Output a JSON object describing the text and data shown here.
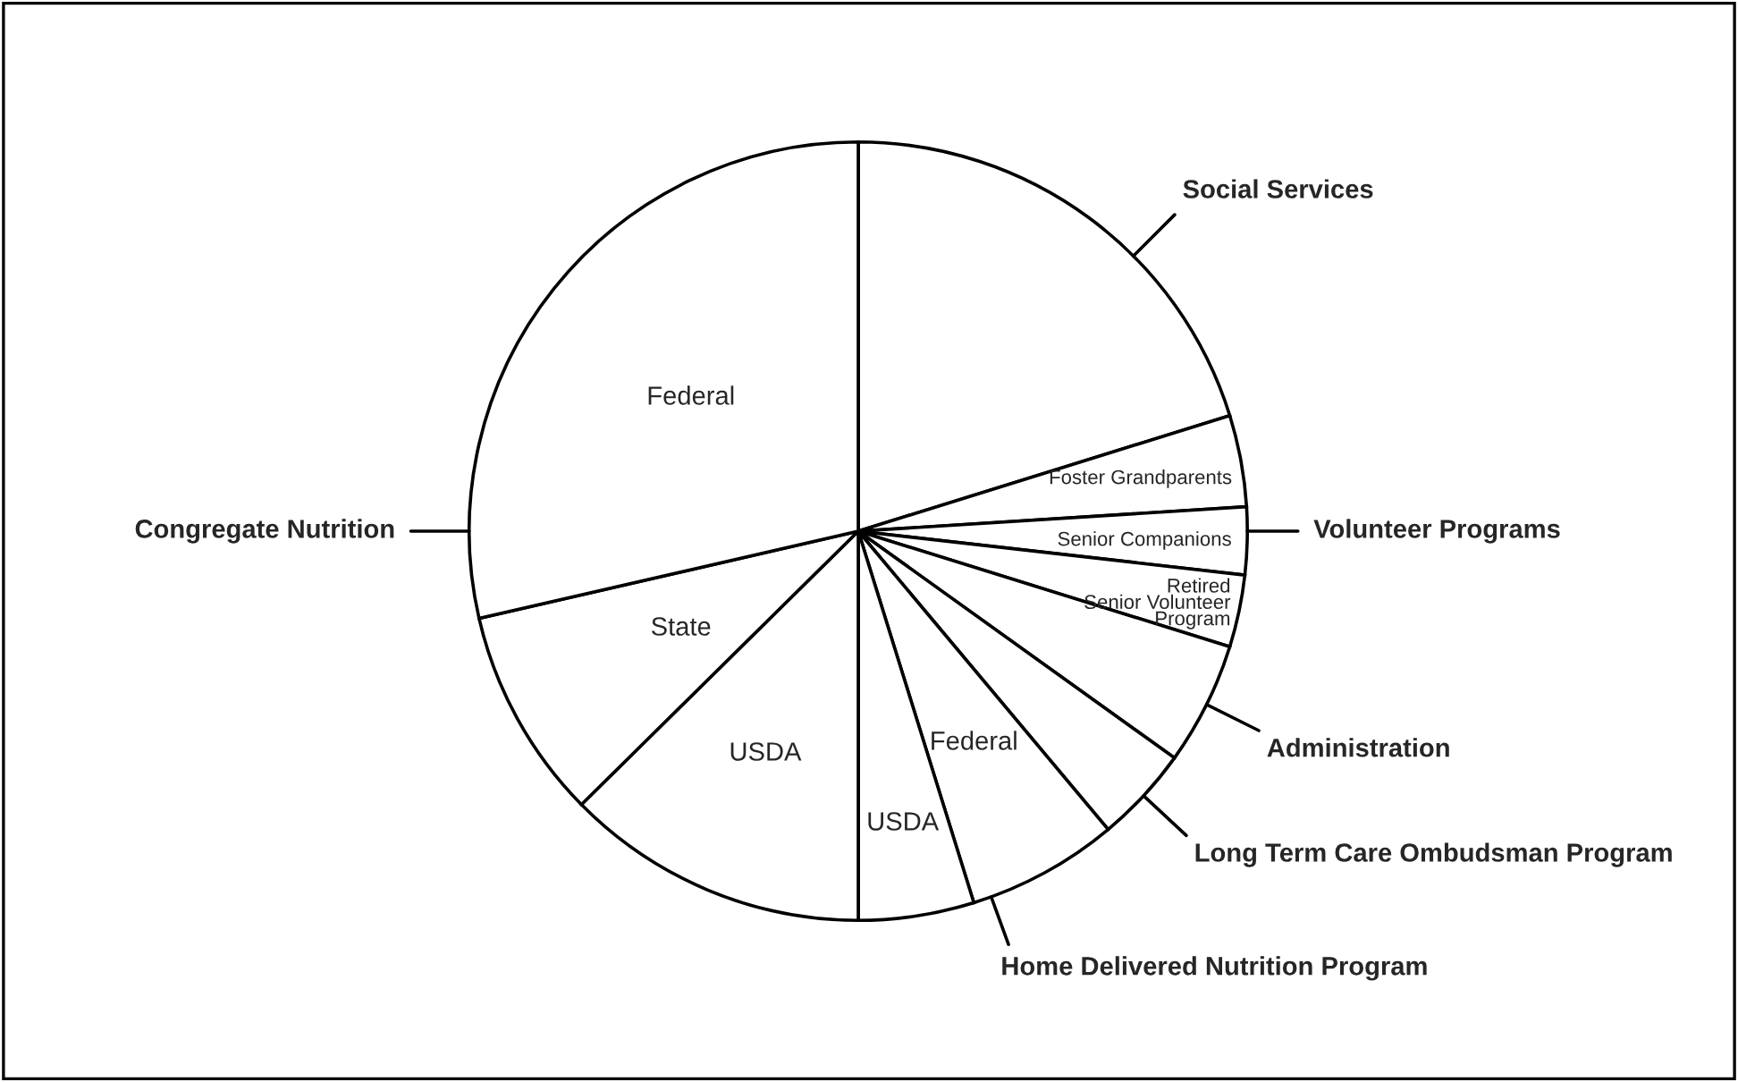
{
  "chart_data": {
    "type": "pie",
    "categories": [
      "Social Services",
      "Foster Grandparents",
      "Senior Companions",
      "Retired\nSenior Volunteer\nProgram",
      "Administration",
      "Long Term Care Ombudsman Program",
      "Federal",
      "USDA",
      "USDA",
      "State",
      "Federal"
    ],
    "values": [
      20.2,
      3.8,
      2.8,
      3.0,
      5.1,
      4.0,
      6.3,
      4.8,
      12.6,
      8.8,
      28.6
    ],
    "colors": [
      "#ffffff",
      "#ffffff",
      "#ffffff",
      "#ffffff",
      "#ffffff",
      "#ffffff",
      "#ffffff",
      "#ffffff",
      "#ffffff",
      "#ffffff",
      "#ffffff"
    ],
    "annotations": [
      "Volunteer Programs",
      "Home Delivered Nutrition Program",
      "Congregate Nutrition"
    ]
  }
}
